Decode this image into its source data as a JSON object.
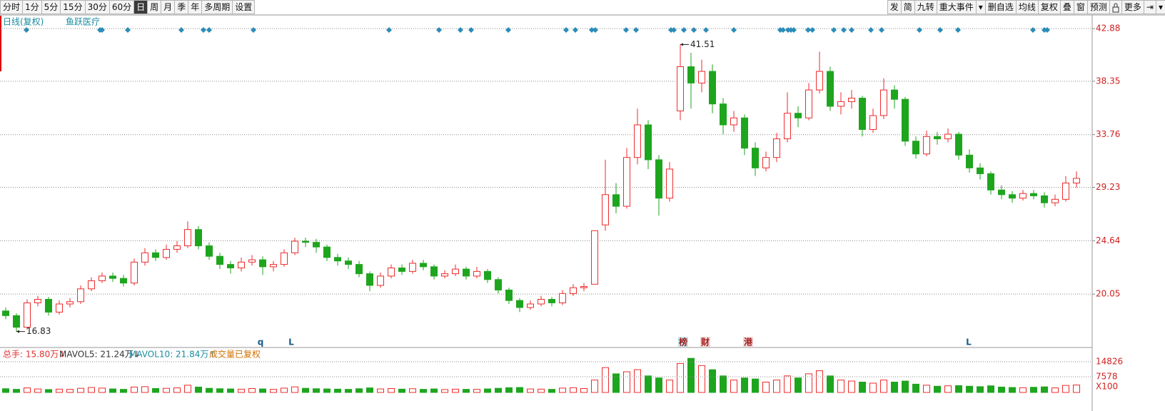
{
  "toolbar": {
    "left": [
      "分时",
      "1分",
      "5分",
      "15分",
      "30分",
      "60分",
      "日",
      "周",
      "月",
      "季",
      "年",
      "多周期",
      "设置"
    ],
    "right": [
      "发",
      "简",
      "九转",
      "重大事件",
      "▾",
      "删自选",
      "均线",
      "复权",
      "叠",
      "窗",
      "预测",
      "更多",
      "⇥",
      "▾"
    ]
  },
  "chart_data": {
    "type": "candlestick",
    "title": "日线(复权)",
    "subtitle": "鱼跃医疗",
    "up_color": "#ee2b2b",
    "down_color": "#1ea51e",
    "grid": true,
    "ylim": [
      15.52,
      44.11
    ],
    "yticks": [
      20.05,
      24.64,
      29.23,
      33.76,
      38.35,
      42.88
    ],
    "annotations": [
      {
        "kind": "high",
        "value": 41.51
      },
      {
        "kind": "low",
        "value": 16.83
      }
    ],
    "events": [
      "q",
      "L",
      "榜",
      "财",
      "港",
      "L"
    ],
    "open": [
      18.6,
      18.2,
      17.2,
      19.3,
      19.6,
      18.5,
      19.2,
      19.4,
      20.5,
      21.2,
      21.6,
      21.4,
      21.0,
      22.8,
      23.6,
      23.2,
      23.9,
      24.2,
      25.6,
      24.2,
      23.3,
      22.6,
      22.3,
      22.8,
      23.0,
      22.4,
      22.6,
      23.6,
      24.6,
      24.5,
      24.1,
      23.2,
      22.9,
      22.6,
      21.8,
      20.8,
      21.6,
      22.3,
      22.0,
      22.7,
      22.4,
      21.6,
      21.8,
      22.2,
      21.6,
      22.0,
      21.3,
      20.4,
      19.5,
      18.9,
      19.2,
      19.6,
      19.3,
      20.1,
      20.6,
      20.9,
      26.0,
      28.6,
      27.6,
      31.8,
      34.6,
      31.6,
      28.3,
      35.8,
      39.6,
      38.2,
      39.2,
      36.4,
      34.6,
      35.2,
      32.6,
      30.9,
      31.8,
      33.4,
      35.6,
      35.2,
      37.6,
      39.2,
      36.2,
      36.6,
      36.9,
      34.2,
      35.4,
      37.6,
      36.8,
      33.2,
      32.1,
      33.6,
      33.4,
      33.8,
      32.0,
      30.9,
      30.4,
      29.0,
      28.6,
      28.3,
      28.7,
      28.5,
      27.9,
      28.2,
      29.6
    ],
    "high": [
      18.9,
      18.4,
      19.6,
      19.9,
      19.8,
      19.5,
      19.7,
      20.8,
      21.5,
      21.9,
      21.9,
      21.7,
      23.1,
      24.0,
      23.9,
      24.3,
      24.6,
      26.3,
      25.9,
      24.5,
      23.6,
      22.9,
      23.2,
      23.4,
      23.3,
      22.9,
      23.9,
      24.9,
      24.9,
      24.8,
      24.3,
      23.5,
      23.2,
      22.9,
      22.0,
      21.9,
      22.6,
      22.6,
      23.0,
      23.0,
      22.6,
      22.1,
      22.6,
      22.4,
      22.4,
      22.2,
      21.5,
      20.6,
      19.7,
      19.5,
      19.9,
      19.8,
      20.4,
      20.9,
      21.0,
      25.5,
      31.6,
      29.6,
      32.6,
      36.0,
      35.0,
      32.0,
      31.4,
      41.51,
      40.8,
      40.2,
      39.8,
      36.9,
      35.8,
      35.5,
      33.1,
      32.3,
      33.9,
      37.4,
      36.2,
      38.2,
      40.9,
      39.6,
      37.4,
      37.6,
      37.1,
      36.0,
      38.6,
      38.0,
      37.0,
      33.6,
      34.1,
      34.0,
      34.3,
      34.0,
      32.5,
      31.3,
      30.6,
      29.4,
      28.9,
      29.0,
      29.0,
      28.8,
      28.6,
      30.2,
      30.6
    ],
    "low": [
      17.9,
      16.83,
      17.0,
      19.0,
      18.2,
      18.3,
      18.9,
      19.2,
      20.3,
      21.0,
      21.1,
      20.7,
      20.8,
      22.5,
      22.9,
      23.0,
      23.6,
      24.0,
      23.9,
      23.0,
      22.2,
      21.8,
      22.0,
      22.5,
      21.7,
      22.0,
      22.4,
      23.4,
      24.1,
      23.6,
      22.9,
      22.5,
      22.2,
      21.5,
      20.3,
      20.6,
      21.4,
      21.7,
      21.8,
      22.1,
      21.3,
      21.4,
      21.6,
      21.3,
      21.4,
      21.0,
      20.1,
      19.2,
      18.5,
      18.7,
      19.0,
      19.0,
      19.1,
      19.9,
      20.3,
      20.9,
      25.5,
      27.0,
      27.4,
      31.2,
      30.8,
      26.8,
      28.0,
      35.0,
      36.0,
      37.4,
      35.6,
      33.8,
      34.0,
      32.0,
      30.2,
      30.6,
      31.4,
      33.1,
      34.4,
      35.0,
      37.3,
      35.8,
      35.5,
      36.0,
      33.6,
      33.9,
      35.1,
      36.0,
      32.8,
      31.7,
      31.9,
      32.9,
      33.1,
      31.6,
      30.5,
      29.9,
      28.6,
      28.2,
      27.9,
      28.1,
      28.2,
      27.5,
      27.6,
      28.0,
      29.2
    ],
    "close": [
      18.2,
      17.2,
      19.3,
      19.6,
      18.5,
      19.2,
      19.4,
      20.5,
      21.2,
      21.6,
      21.4,
      21.0,
      22.8,
      23.6,
      23.2,
      23.9,
      24.2,
      25.6,
      24.2,
      23.3,
      22.6,
      22.3,
      22.8,
      23.0,
      22.4,
      22.6,
      23.6,
      24.6,
      24.5,
      24.1,
      23.2,
      22.9,
      22.6,
      21.8,
      20.8,
      21.6,
      22.3,
      22.0,
      22.7,
      22.4,
      21.6,
      21.8,
      22.2,
      21.6,
      22.0,
      21.3,
      20.4,
      19.5,
      18.9,
      19.2,
      19.6,
      19.3,
      20.1,
      20.6,
      20.7,
      25.5,
      28.6,
      27.6,
      31.8,
      34.6,
      31.6,
      28.3,
      30.8,
      39.6,
      38.2,
      39.2,
      36.4,
      34.6,
      35.2,
      32.6,
      30.9,
      31.8,
      33.4,
      35.6,
      35.2,
      37.6,
      39.2,
      36.2,
      36.6,
      36.9,
      34.2,
      35.4,
      37.6,
      36.8,
      33.2,
      32.1,
      33.6,
      33.4,
      33.8,
      32.0,
      30.9,
      30.4,
      29.0,
      28.6,
      28.3,
      28.7,
      28.5,
      27.9,
      28.2,
      29.6,
      30.0
    ],
    "volume": {
      "legend": [
        "总手: 15.80万↓",
        "MAVOL5: 21.24万↓",
        "MAVOL10: 21.84万↑",
        "成交量已复权"
      ],
      "unit": "X100",
      "ylim": [
        0,
        20700
      ],
      "yticks": [
        7578,
        14826
      ],
      "values": [
        1800,
        1500,
        2200,
        1700,
        1400,
        1600,
        1500,
        2000,
        2400,
        2100,
        1700,
        1500,
        2600,
        2800,
        1900,
        2000,
        2200,
        3500,
        2600,
        2000,
        1800,
        1700,
        1600,
        1900,
        1700,
        1500,
        2100,
        2700,
        2000,
        1800,
        1700,
        1600,
        1500,
        1800,
        2200,
        1700,
        1900,
        1600,
        1800,
        1500,
        1700,
        1400,
        1600,
        1500,
        1500,
        1700,
        2000,
        2300,
        2400,
        1700,
        1600,
        1500,
        2100,
        2300,
        1900,
        6000,
        12000,
        9000,
        10000,
        11000,
        8000,
        7000,
        6000,
        14000,
        16500,
        13000,
        11000,
        8000,
        6000,
        7000,
        6500,
        5000,
        6000,
        8000,
        7000,
        9000,
        10500,
        8000,
        6000,
        5500,
        5000,
        4500,
        6000,
        5000,
        5500,
        4000,
        3500,
        3000,
        3200,
        3300,
        3000,
        2800,
        3200,
        2600,
        2400,
        2300,
        2500,
        2700,
        2200,
        3400,
        3600
      ]
    }
  }
}
